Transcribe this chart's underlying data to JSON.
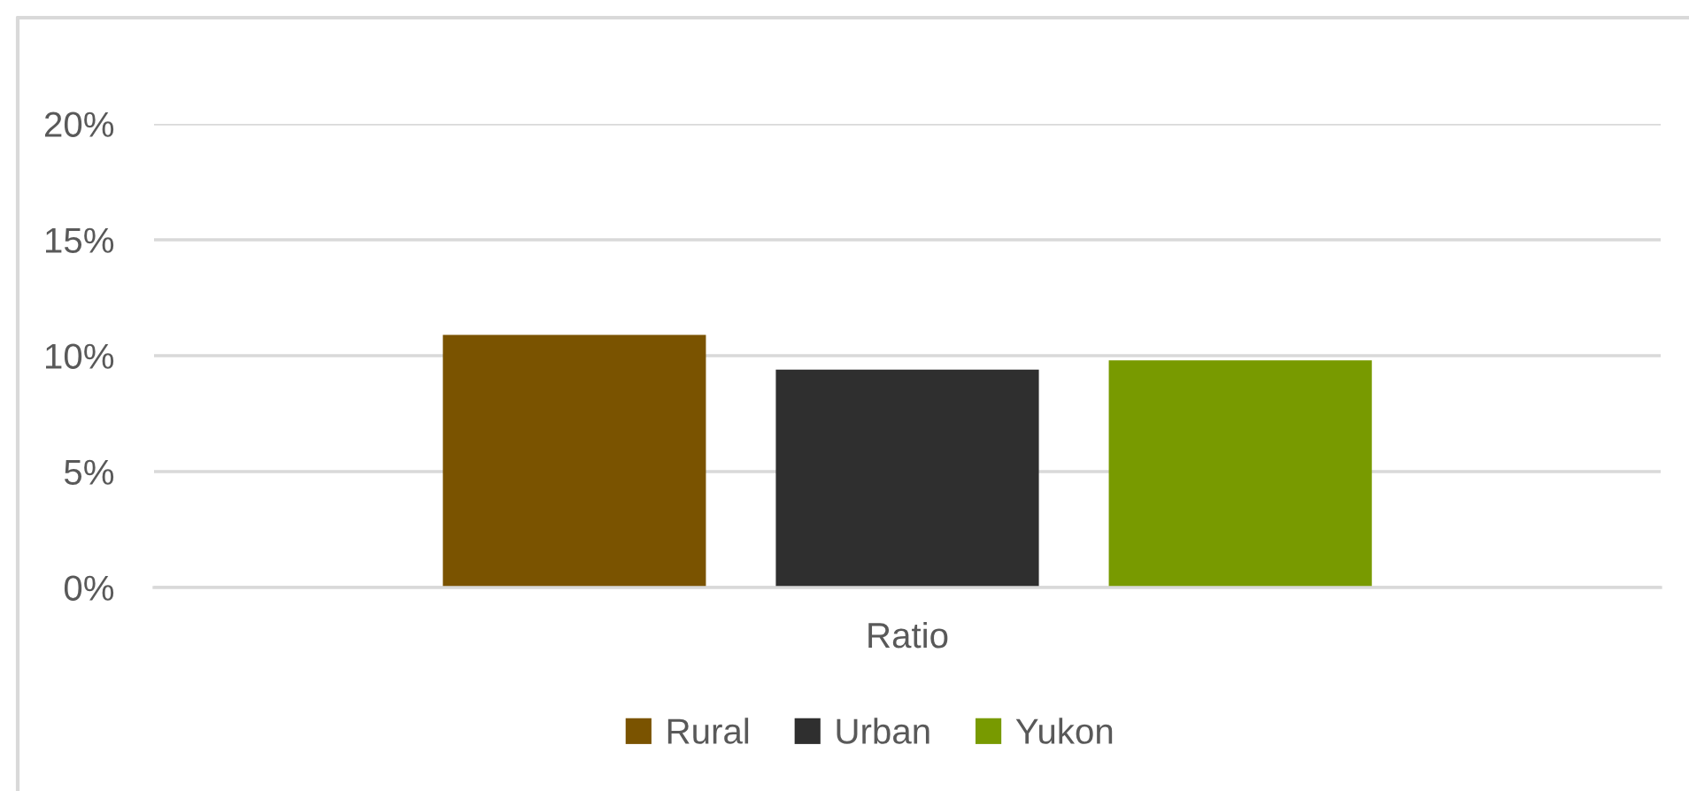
{
  "chart_data": {
    "type": "bar",
    "categories": [
      "Ratio"
    ],
    "series": [
      {
        "name": "Rural",
        "color": "#7a5300",
        "values": [
          10.9
        ]
      },
      {
        "name": "Urban",
        "color": "#2f2f2f",
        "values": [
          9.4
        ]
      },
      {
        "name": "Yukon",
        "color": "#789a00",
        "values": [
          9.8
        ]
      }
    ],
    "ylim": [
      0,
      20
    ],
    "yticks": [
      {
        "value": 0,
        "label": "0%"
      },
      {
        "value": 5,
        "label": "5%"
      },
      {
        "value": 10,
        "label": "10%"
      },
      {
        "value": 15,
        "label": "15%"
      },
      {
        "value": 20,
        "label": "20%"
      }
    ],
    "grid": "y",
    "legend": "bottom"
  }
}
